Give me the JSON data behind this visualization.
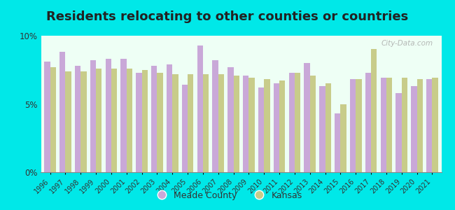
{
  "title": "Residents relocating to other counties or countries",
  "years": [
    1996,
    1997,
    1998,
    1999,
    2000,
    2001,
    2002,
    2003,
    2004,
    2005,
    2006,
    2007,
    2008,
    2009,
    2010,
    2011,
    2012,
    2013,
    2014,
    2015,
    2016,
    2017,
    2018,
    2019,
    2020,
    2021
  ],
  "meade_county": [
    8.1,
    8.8,
    7.8,
    8.2,
    8.3,
    8.3,
    7.3,
    7.8,
    7.9,
    6.4,
    9.3,
    8.2,
    7.7,
    7.1,
    6.2,
    6.5,
    7.3,
    8.0,
    6.3,
    4.3,
    6.8,
    7.3,
    6.9,
    5.8,
    6.3,
    6.8
  ],
  "kansas": [
    7.7,
    7.4,
    7.4,
    7.6,
    7.6,
    7.6,
    7.5,
    7.3,
    7.2,
    7.2,
    7.2,
    7.2,
    7.1,
    6.9,
    6.8,
    6.7,
    7.3,
    7.1,
    6.5,
    5.0,
    6.8,
    9.0,
    6.9,
    6.9,
    6.8,
    6.9
  ],
  "meade_color": "#c9a8d8",
  "kansas_color": "#c8cc8a",
  "background_color": "#eefff5",
  "outer_background": "#00e8e8",
  "bar_width": 0.38,
  "ylim": [
    0,
    10
  ],
  "yticks": [
    0,
    5,
    10
  ],
  "ytick_labels": [
    "0%",
    "5%",
    "10%"
  ],
  "legend_meade": "Meade County",
  "legend_kansas": "Kansas",
  "title_fontsize": 13,
  "watermark": "City-Data.com"
}
